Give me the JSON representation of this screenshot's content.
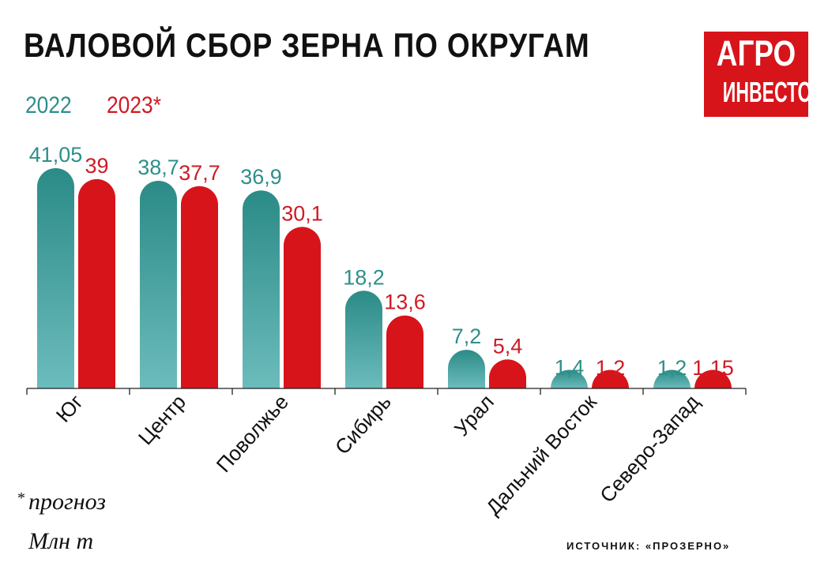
{
  "chart_data": {
    "type": "bar",
    "title": "ВАЛОВОЙ СБОР ЗЕРНА ПО ОКРУГАМ",
    "categories": [
      "Юг",
      "Центр",
      "Поволжье",
      "Сибирь",
      "Урал",
      "Дальний Восток",
      "Северо-Запад"
    ],
    "series": [
      {
        "name": "2022",
        "values": [
          41.05,
          38.7,
          36.9,
          18.2,
          7.2,
          1.4,
          1.2
        ],
        "labels": [
          "41,05",
          "38,7",
          "36,9",
          "18,2",
          "7,2",
          "1,4",
          "1,2"
        ]
      },
      {
        "name": "2023*",
        "values": [
          39,
          37.7,
          30.1,
          13.6,
          5.4,
          1.2,
          1.15
        ],
        "labels": [
          "39",
          "37,7",
          "30,1",
          "13,6",
          "5,4",
          "1,2",
          "1,15"
        ]
      }
    ],
    "ylim": [
      0,
      41.05
    ],
    "grid": false,
    "legend_placement": "top-left",
    "colors": {
      "series_2022_top": "#2b8b86",
      "series_2022_bottom": "#6cbcbc",
      "series_2023": "#d7141a",
      "label_2022": "#2e8f8a",
      "label_2023": "#cf1b24"
    }
  },
  "logo": {
    "line1": "АГРО",
    "line2": "ИНВЕСТОР"
  },
  "footnote": {
    "star": "*",
    "text": "прогноз"
  },
  "unit": "Млн т",
  "source": "ИСТОЧНИК: «ПРОЗЕРНО»"
}
